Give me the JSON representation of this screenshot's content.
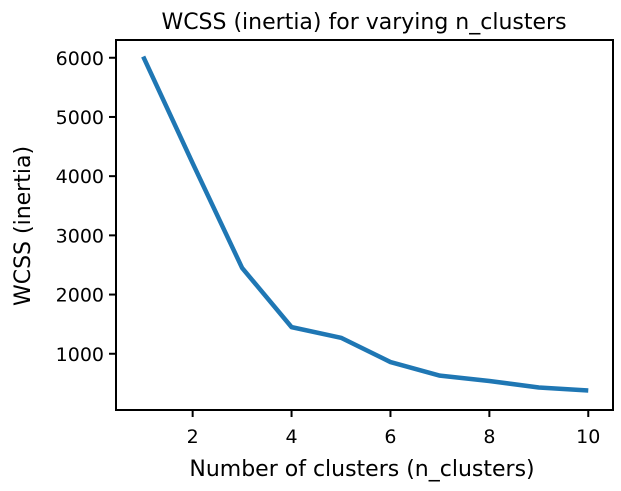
{
  "chart_data": {
    "type": "line",
    "title": "WCSS (inertia) for varying n_clusters",
    "xlabel": "Number of clusters (n_clusters)",
    "ylabel": "WCSS (inertia)",
    "x": [
      1,
      2,
      3,
      4,
      5,
      6,
      7,
      8,
      9,
      10
    ],
    "series": [
      {
        "values": [
          6020,
          4220,
          2450,
          1450,
          1270,
          860,
          630,
          540,
          430,
          380
        ],
        "color": "#1f77b4"
      }
    ],
    "xlim": [
      0.45,
      10.5
    ],
    "ylim": [
      50,
      6300
    ],
    "xticks": [
      2,
      4,
      6,
      8,
      10
    ],
    "yticks": [
      1000,
      2000,
      3000,
      4000,
      5000,
      6000
    ],
    "grid": false,
    "legend": "none"
  }
}
